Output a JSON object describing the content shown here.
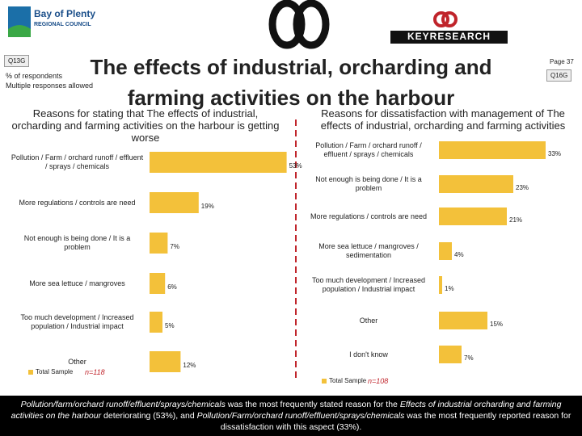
{
  "header": {
    "logo_left": [
      "Bay of Plenty",
      "REGIONAL COUNCIL"
    ],
    "logo_right": "KEYRESEARCH",
    "question_left": "Q13G",
    "note": [
      "% of respondents",
      "Multiple responses allowed"
    ],
    "title": "The effects of industrial, orcharding and farming activities on the harbour",
    "page": "Page 37",
    "question_right": "Q16G"
  },
  "chart_data": [
    {
      "type": "bar",
      "orientation": "horizontal",
      "title": "Reasons for stating that The effects of industrial, orcharding and farming activities on the harbour is getting worse",
      "categories": [
        "Pollution / Farm / orchard runoff / effluent / sprays / chemicals",
        "More regulations / controls are need",
        "Not enough is being done / It is a problem",
        "More sea lettuce / mangroves",
        "Too much development / Increased population / Industrial impact",
        "Other"
      ],
      "series": [
        {
          "name": "Total Sample",
          "color": "#f3c13a",
          "values": [
            53,
            19,
            7,
            6,
            5,
            12
          ],
          "value_labels": [
            "53%",
            "19%",
            "7%",
            "6%",
            "5%",
            "12%"
          ]
        }
      ],
      "sample_size": "n=118"
    },
    {
      "type": "bar",
      "orientation": "horizontal",
      "title": "Reasons for dissatisfaction with management of The effects of industrial, orcharding and farming activities",
      "categories": [
        "Pollution / Farm / orchard runoff / effluent / sprays / chemicals",
        "Not enough is being done / It is a problem",
        "More regulations / controls are need",
        "More sea lettuce / mangroves / sedimentation",
        "Too much development / Increased population / Industrial impact",
        "Other",
        "I don't know"
      ],
      "series": [
        {
          "name": "Total Sample",
          "color": "#f3c13a",
          "values": [
            33,
            23,
            21,
            4,
            1,
            15,
            7
          ],
          "value_labels": [
            "33%",
            "23%",
            "21%",
            "4%",
            "1%",
            "15%",
            "7%"
          ]
        }
      ],
      "sample_size": "n=108"
    }
  ],
  "footer": {
    "parts": [
      "Pollution/farm/orchard runoff/effluent/sprays/chemicals",
      " was the most frequently stated reason for the ",
      "Effects of industrial orcharding and farming activities on the harbour",
      " deteriorating (53%), and ",
      "Pollution/Farm/orchard runoff/effluent/sprays/chemicals",
      " was the most frequently reported reason for dissatisfaction with this aspect (33%)."
    ]
  }
}
